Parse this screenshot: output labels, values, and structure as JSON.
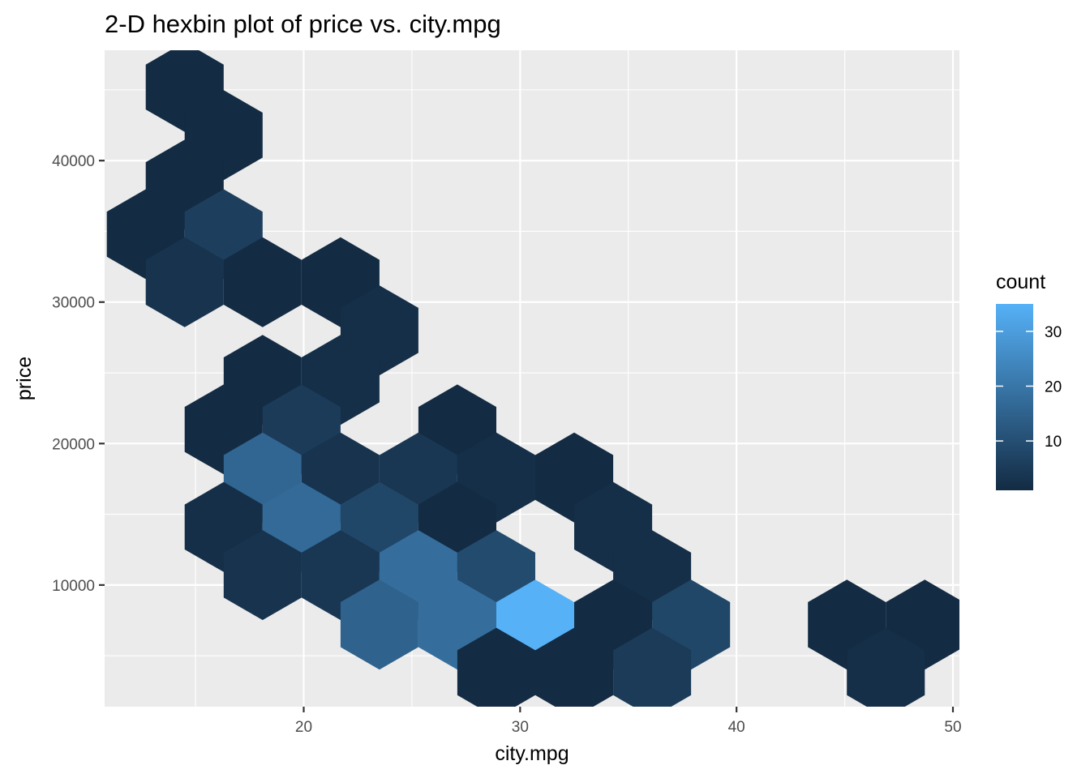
{
  "chart_data": {
    "type": "heatmap",
    "subtype": "hexbin",
    "title": "2-D hexbin plot of price vs. city.mpg",
    "xlabel": "city.mpg",
    "ylabel": "price",
    "xlim": [
      10.8,
      50.3
    ],
    "ylim": [
      1400,
      47800
    ],
    "x_ticks": [
      20,
      30,
      40,
      50
    ],
    "x_tick_labels": [
      "20",
      "30",
      "40",
      "50"
    ],
    "y_ticks": [
      10000,
      20000,
      30000,
      40000
    ],
    "y_tick_labels": [
      "10000",
      "20000",
      "30000",
      "40000"
    ],
    "grid": true,
    "background": "#ebebeb",
    "legend": {
      "title": "count",
      "position": "right",
      "ticks": [
        10,
        20,
        30
      ],
      "tick_labels": [
        "10",
        "20",
        "30"
      ],
      "min": 1,
      "max": 35,
      "color_low": "#132b43",
      "color_high": "#56b1f7"
    },
    "hex_width_mpg": 3.6,
    "hexbins": [
      {
        "x": 14.5,
        "y": 45200,
        "count": 1
      },
      {
        "x": 16.3,
        "y": 41800,
        "count": 1
      },
      {
        "x": 14.5,
        "y": 38300,
        "count": 1
      },
      {
        "x": 12.7,
        "y": 34800,
        "count": 1
      },
      {
        "x": 16.3,
        "y": 34800,
        "count": 6
      },
      {
        "x": 14.5,
        "y": 31400,
        "count": 3
      },
      {
        "x": 18.1,
        "y": 31400,
        "count": 1
      },
      {
        "x": 21.7,
        "y": 31400,
        "count": 1
      },
      {
        "x": 23.5,
        "y": 28000,
        "count": 2
      },
      {
        "x": 18.1,
        "y": 24500,
        "count": 1
      },
      {
        "x": 21.7,
        "y": 24500,
        "count": 2
      },
      {
        "x": 16.3,
        "y": 21000,
        "count": 1
      },
      {
        "x": 19.9,
        "y": 21000,
        "count": 5
      },
      {
        "x": 27.1,
        "y": 21000,
        "count": 1
      },
      {
        "x": 18.1,
        "y": 17600,
        "count": 16
      },
      {
        "x": 21.7,
        "y": 17600,
        "count": 3
      },
      {
        "x": 25.3,
        "y": 17600,
        "count": 4
      },
      {
        "x": 28.9,
        "y": 17600,
        "count": 2
      },
      {
        "x": 32.5,
        "y": 17600,
        "count": 1
      },
      {
        "x": 16.3,
        "y": 14100,
        "count": 2
      },
      {
        "x": 19.9,
        "y": 14100,
        "count": 17
      },
      {
        "x": 23.5,
        "y": 14100,
        "count": 8
      },
      {
        "x": 27.1,
        "y": 14100,
        "count": 1
      },
      {
        "x": 34.3,
        "y": 14100,
        "count": 2
      },
      {
        "x": 18.1,
        "y": 10700,
        "count": 3
      },
      {
        "x": 21.7,
        "y": 10700,
        "count": 4
      },
      {
        "x": 25.3,
        "y": 10700,
        "count": 18
      },
      {
        "x": 28.9,
        "y": 10700,
        "count": 9
      },
      {
        "x": 36.1,
        "y": 10700,
        "count": 2
      },
      {
        "x": 23.5,
        "y": 7200,
        "count": 15
      },
      {
        "x": 27.1,
        "y": 7200,
        "count": 18
      },
      {
        "x": 30.7,
        "y": 7200,
        "count": 35
      },
      {
        "x": 34.3,
        "y": 7200,
        "count": 1
      },
      {
        "x": 37.9,
        "y": 7200,
        "count": 8
      },
      {
        "x": 45.1,
        "y": 7200,
        "count": 1
      },
      {
        "x": 48.7,
        "y": 7200,
        "count": 1
      },
      {
        "x": 28.9,
        "y": 3800,
        "count": 1
      },
      {
        "x": 32.5,
        "y": 3800,
        "count": 1
      },
      {
        "x": 36.1,
        "y": 3800,
        "count": 5
      },
      {
        "x": 46.9,
        "y": 3800,
        "count": 2
      }
    ]
  }
}
